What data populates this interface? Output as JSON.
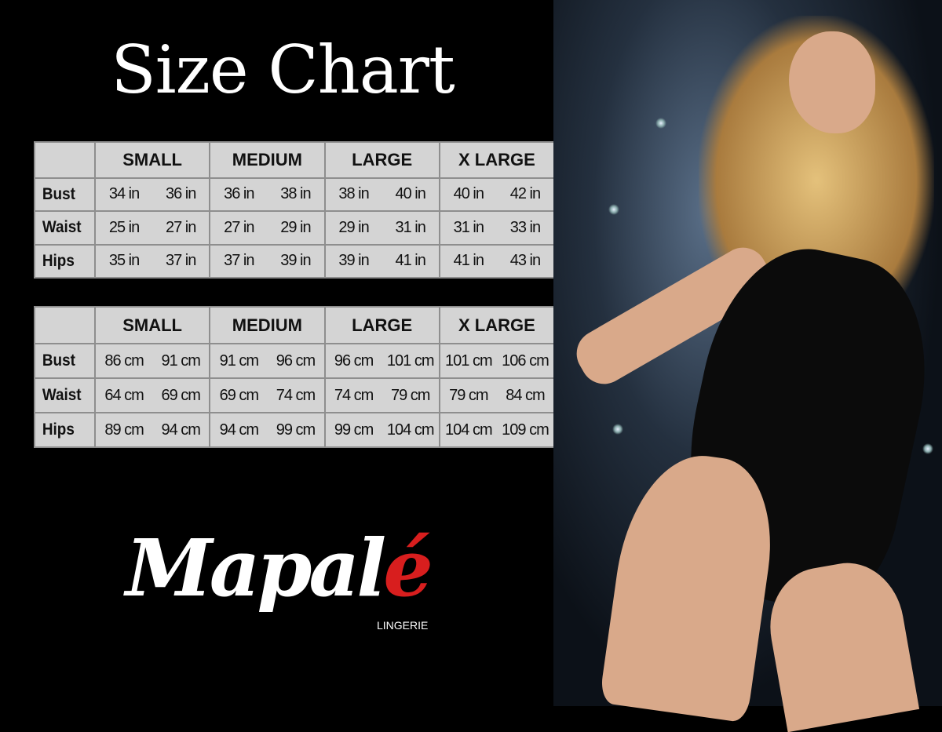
{
  "title": "Size Chart",
  "sizes": [
    "SMALL",
    "MEDIUM",
    "LARGE",
    "X LARGE"
  ],
  "inches_table": {
    "rows": [
      {
        "label": "Bust",
        "values": [
          "34 in",
          "36 in",
          "36 in",
          "38 in",
          "38 in",
          "40 in",
          "40 in",
          "42 in"
        ]
      },
      {
        "label": "Waist",
        "values": [
          "25 in",
          "27 in",
          "27 in",
          "29 in",
          "29 in",
          "31 in",
          "31 in",
          "33 in"
        ]
      },
      {
        "label": "Hips",
        "values": [
          "35 in",
          "37 in",
          "37 in",
          "39 in",
          "39 in",
          "41 in",
          "41 in",
          "43 in"
        ]
      }
    ]
  },
  "cm_table": {
    "rows": [
      {
        "label": "Bust",
        "values": [
          "86 cm",
          "91 cm",
          "91 cm",
          "96 cm",
          "96 cm",
          "101 cm",
          "101 cm",
          "106 cm"
        ]
      },
      {
        "label": "Waist",
        "values": [
          "64 cm",
          "69 cm",
          "69 cm",
          "74 cm",
          "74 cm",
          "79 cm",
          "79 cm",
          "84 cm"
        ]
      },
      {
        "label": "Hips",
        "values": [
          "89 cm",
          "94 cm",
          "94 cm",
          "99 cm",
          "99 cm",
          "104 cm",
          "104 cm",
          "109 cm"
        ]
      }
    ]
  },
  "logo": {
    "brand_main": "Mapal",
    "brand_accent": "é",
    "subtitle": "LINGERIE",
    "accent_color": "#d81e1e"
  }
}
